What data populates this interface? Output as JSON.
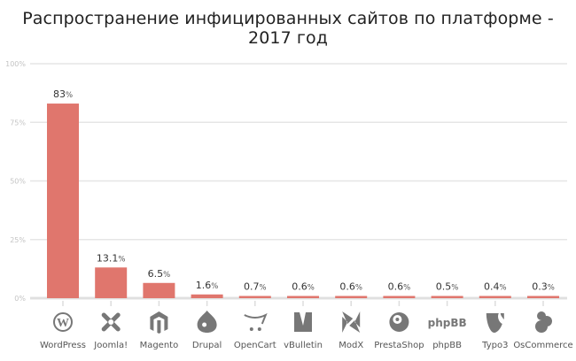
{
  "chart_data": {
    "type": "bar",
    "title": "Распространение инфицированных сайтов по платформе - 2017 год",
    "xlabel": "",
    "ylabel": "",
    "ylim": [
      0,
      100
    ],
    "yticks": [
      "0%",
      "25%",
      "50%",
      "75%",
      "100%"
    ],
    "grid": true,
    "categories": [
      "WordPress",
      "Joomla!",
      "Magento",
      "Drupal",
      "OpenCart",
      "vBulletin",
      "ModX",
      "PrestaShop",
      "phpBB",
      "Typo3",
      "OsCommerce"
    ],
    "values": [
      83,
      13.1,
      6.5,
      1.6,
      0.7,
      0.6,
      0.6,
      0.6,
      0.5,
      0.4,
      0.3
    ],
    "value_labels": [
      "83",
      "13.1",
      "6.5",
      "1.6",
      "0.7",
      "0.6",
      "0.6",
      "0.6",
      "0.5",
      "0.4",
      "0.3"
    ],
    "value_suffix": "%",
    "icons": [
      "wordpress-icon",
      "joomla-icon",
      "magento-icon",
      "drupal-icon",
      "opencart-icon",
      "vbulletin-icon",
      "modx-icon",
      "prestashop-icon",
      "phpbb-icon",
      "typo3-icon",
      "oscommerce-icon"
    ],
    "phpbb_logo_text": "phpBB",
    "colors": {
      "bar": "#e0766d",
      "grid": "#e6e6e6",
      "axis": "#e0e0e0",
      "icon": "#777777"
    }
  }
}
